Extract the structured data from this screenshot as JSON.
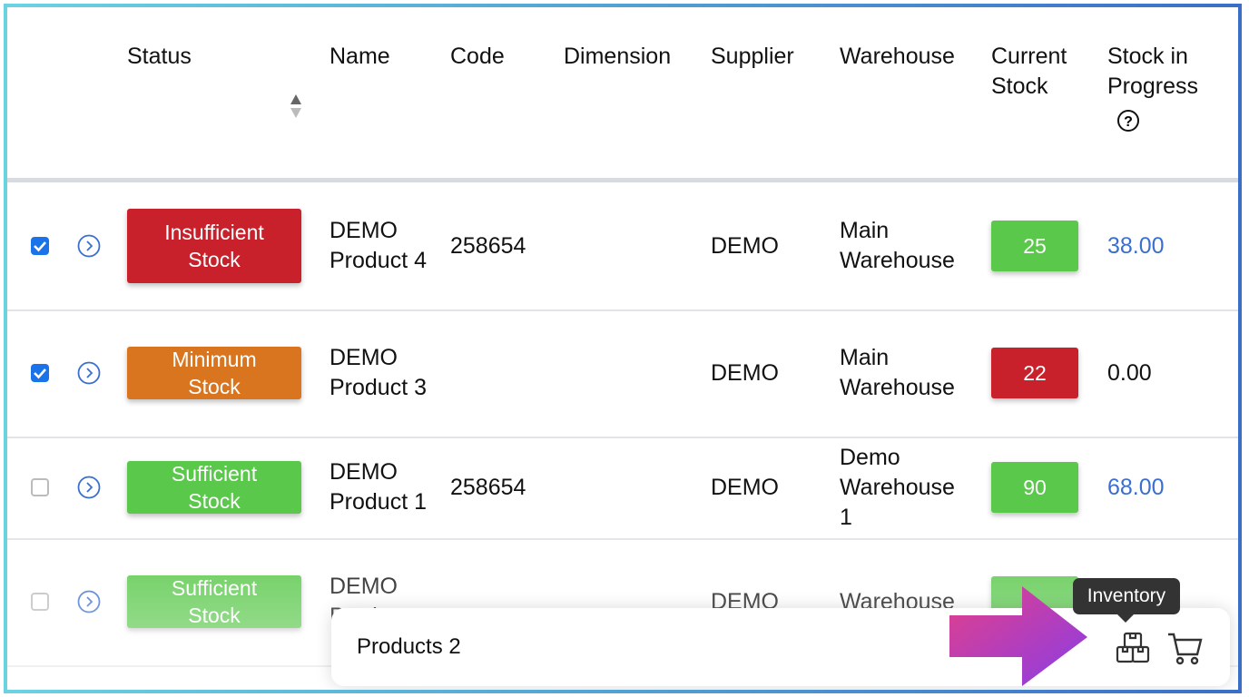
{
  "table": {
    "header": [
      "Status",
      "Name",
      "Code",
      "Dimension",
      "Supplier",
      "Warehouse",
      "Current Stock",
      "Stock in Progress"
    ],
    "rows": [
      {
        "checked": true,
        "status": "Insufficient Stock",
        "status_color": "#c9212b",
        "name": "DEMO Product 4",
        "code": "258654",
        "supplier": "DEMO",
        "warehouse": "Main Warehouse",
        "current_stock": "25",
        "stock_color": "#5ac84b",
        "stock_in_progress": "38.00",
        "progress_link": true
      },
      {
        "checked": true,
        "status": "Minimum Stock",
        "status_color": "#d9751e",
        "name": "DEMO Product 3",
        "supplier": "DEMO",
        "warehouse": "Main Warehouse",
        "current_stock": "22",
        "stock_color": "#c9212b",
        "stock_in_progress": "0.00",
        "progress_link": false
      },
      {
        "checked": false,
        "status": "Sufficient Stock",
        "status_color": "#5ac84b",
        "name": "DEMO Product 1",
        "code": "258654",
        "supplier": "DEMO",
        "warehouse": "Demo Warehouse 1",
        "current_stock": "90",
        "stock_color": "#5ac84b",
        "stock_in_progress": "68.00",
        "progress_link": true
      },
      {
        "checked": false,
        "status": "Sufficient Stock",
        "status_color": "#5ac84b",
        "name": "DEMO Product",
        "supplier": "DEMO",
        "warehouse": "Warehouse",
        "stock_color": "#5ac84b",
        "progress_link": false
      }
    ]
  },
  "footer": {
    "label": "Products 2",
    "tooltip": "Inventory"
  }
}
